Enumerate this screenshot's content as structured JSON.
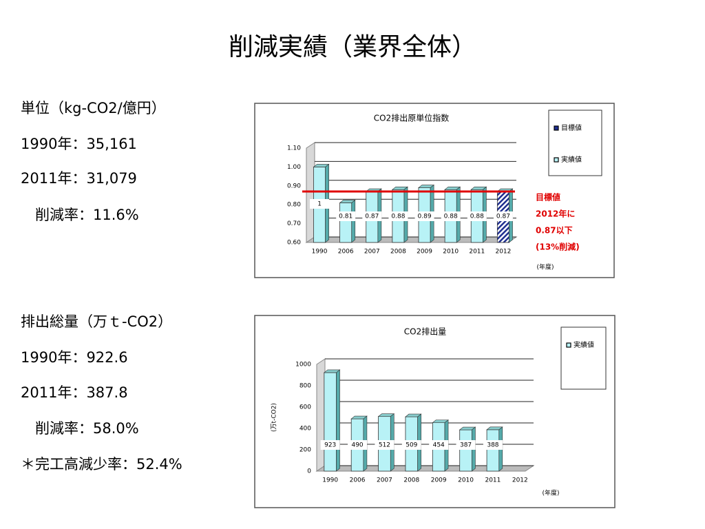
{
  "title": "削減実績（業界全体）",
  "sections": [
    {
      "lines": [
        "単位（kg-CO2/億円）",
        "1990年：35,161",
        "2011年：31,079",
        "　削減率：11.6%"
      ]
    },
    {
      "lines": [
        "排出総量（万ｔ-CO2）",
        "1990年：922.6",
        "2011年：387.8",
        "　削減率：58.0%",
        "＊完工高減少率：52.4%"
      ]
    }
  ],
  "chart_data": [
    {
      "type": "bar",
      "title": "CO2排出原単位指数",
      "categories": [
        "1990",
        "2006",
        "2007",
        "2008",
        "2009",
        "2010",
        "2011",
        "2012"
      ],
      "series": [
        {
          "name": "目標値",
          "color": "#1f2f8f",
          "pattern": "hatch",
          "values": [
            null,
            null,
            null,
            null,
            null,
            null,
            null,
            0.87
          ]
        },
        {
          "name": "実績値",
          "color": "#b8f2f6",
          "values": [
            1,
            0.81,
            0.87,
            0.88,
            0.89,
            0.88,
            0.88,
            null
          ]
        }
      ],
      "ylim": [
        0.6,
        1.1
      ],
      "yticks": [
        {
          "value": 0.6,
          "label": "0.60"
        },
        {
          "value": 0.7,
          "label": "0.70"
        },
        {
          "value": 0.8,
          "label": "0.80"
        },
        {
          "value": 0.9,
          "label": "0.90"
        },
        {
          "value": 1.0,
          "label": "1.00"
        },
        {
          "value": 1.1,
          "label": "1.10"
        }
      ],
      "grid": true,
      "xlabel": "(年度)",
      "target_line": {
        "value": 0.87,
        "color": "#e00000"
      },
      "annotation": [
        "目標値",
        "2012年に",
        "0.87以下",
        "(13%削減)"
      ]
    },
    {
      "type": "bar",
      "title": "CO2排出量",
      "categories": [
        "1990",
        "2006",
        "2007",
        "2008",
        "2009",
        "2010",
        "2011",
        "2012"
      ],
      "series": [
        {
          "name": "実績値",
          "color": "#b8f2f6",
          "values": [
            923,
            490,
            512,
            509,
            454,
            387,
            388,
            null
          ]
        }
      ],
      "ylim": [
        0,
        1000
      ],
      "yticks": [
        0,
        200,
        400,
        600,
        800,
        1000
      ],
      "grid": true,
      "ylabel": "(万t-CO2)",
      "xlabel": "(年度)"
    }
  ]
}
